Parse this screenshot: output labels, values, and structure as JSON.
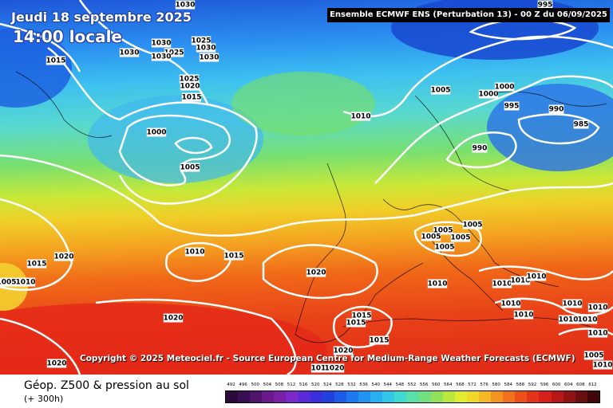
{
  "header": {
    "date": "Jeudi 18 septembre 2025",
    "time": "14:00 locale",
    "model": "Ensemble ECMWF ENS  (Perturbation 13)  -  00 Z du 06/09/2025"
  },
  "copyright": "Copyright © 2025 Meteociel.fr - Source European Centre for Medium-Range Weather Forecasts (ECMWF)",
  "legend": {
    "title": "Géop. Z500 & pression au sol",
    "subtitle": "(+ 300h)",
    "scale_values": [
      "492",
      "496",
      "500",
      "504",
      "508",
      "512",
      "516",
      "520",
      "524",
      "528",
      "532",
      "536",
      "540",
      "544",
      "548",
      "552",
      "556",
      "560",
      "564",
      "568",
      "572",
      "576",
      "580",
      "584",
      "588",
      "592",
      "596",
      "600",
      "604",
      "608",
      "612"
    ],
    "scale_colors": [
      "#2a0a3a",
      "#3a0e52",
      "#50146c",
      "#6a1a8a",
      "#7a20a6",
      "#7a2ac8",
      "#5a2ad8",
      "#3a30e0",
      "#2040e0",
      "#1c5ce8",
      "#1e78f0",
      "#2094f0",
      "#28b0f0",
      "#30c8e8",
      "#40d8d0",
      "#58e0a8",
      "#70e080",
      "#90e058",
      "#b8e83c",
      "#e0ec30",
      "#f0d828",
      "#f4b824",
      "#f49420",
      "#f0701c",
      "#ec5018",
      "#e43418",
      "#d82018",
      "#b81818",
      "#901414",
      "#681010",
      "#400808"
    ]
  },
  "pressure_labels": [
    {
      "text": "1030"
    },
    {
      "text": "1015"
    },
    {
      "text": "1030"
    },
    {
      "text": "1030"
    },
    {
      "text": "1025"
    },
    {
      "text": "1030"
    },
    {
      "text": "1025"
    },
    {
      "text": "1030"
    },
    {
      "text": "1030"
    },
    {
      "text": "1025"
    },
    {
      "text": "1020"
    },
    {
      "text": "1015"
    },
    {
      "text": "1000"
    },
    {
      "text": "1005"
    },
    {
      "text": "1010"
    },
    {
      "text": "1005"
    },
    {
      "text": "1000"
    },
    {
      "text": "1000"
    },
    {
      "text": "995"
    },
    {
      "text": "995"
    },
    {
      "text": "990"
    },
    {
      "text": "985"
    },
    {
      "text": "990"
    },
    {
      "text": "1005"
    },
    {
      "text": "1005"
    },
    {
      "text": "1005"
    },
    {
      "text": "1005"
    },
    {
      "text": "1005"
    },
    {
      "text": "1020"
    },
    {
      "text": "1015"
    },
    {
      "text": "1010"
    },
    {
      "text": "1015"
    },
    {
      "text": "1005"
    },
    {
      "text": "1010"
    },
    {
      "text": "1020"
    },
    {
      "text": "1010"
    },
    {
      "text": "1020"
    },
    {
      "text": "1015"
    },
    {
      "text": "1015"
    },
    {
      "text": "1015"
    },
    {
      "text": "1020"
    },
    {
      "text": "1020"
    },
    {
      "text": "1010"
    },
    {
      "text": "1020"
    },
    {
      "text": "1010"
    },
    {
      "text": "1010"
    },
    {
      "text": "1010"
    },
    {
      "text": "1010"
    },
    {
      "text": "1010"
    },
    {
      "text": "1010"
    },
    {
      "text": "1010"
    },
    {
      "text": "1010"
    },
    {
      "text": "1010"
    },
    {
      "text": "1010"
    },
    {
      "text": "1005"
    },
    {
      "text": "1010"
    }
  ]
}
